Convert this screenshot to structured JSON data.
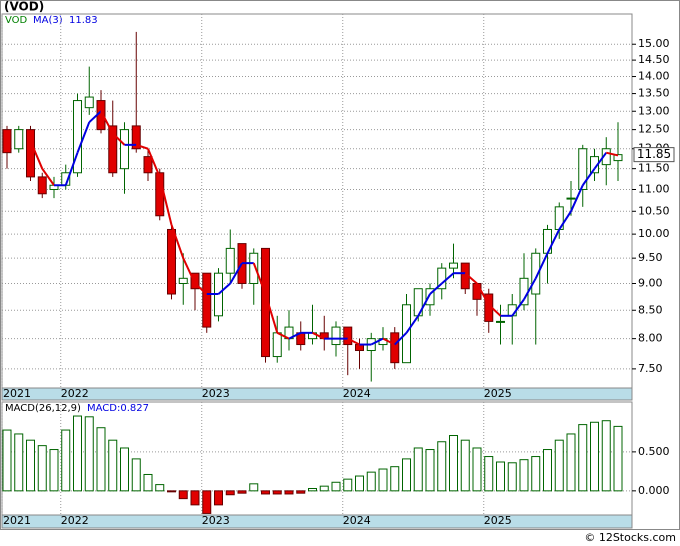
{
  "chart_data": [
    {
      "type": "candlestick",
      "title": "(VOD)",
      "symbol": "VOD",
      "log_scale": true,
      "grid": true,
      "categories": [
        "2021",
        null,
        null,
        null,
        null,
        "2022",
        null,
        null,
        null,
        null,
        null,
        null,
        null,
        null,
        null,
        null,
        null,
        "2023",
        null,
        null,
        null,
        null,
        null,
        null,
        null,
        null,
        null,
        null,
        null,
        "2024",
        null,
        null,
        null,
        null,
        null,
        null,
        null,
        null,
        null,
        null,
        null,
        "2025",
        null,
        null,
        null,
        null,
        null,
        null,
        null,
        null,
        null,
        null,
        null
      ],
      "open": [
        12.5,
        12.0,
        12.5,
        11.3,
        11.0,
        11.1,
        11.4,
        13.1,
        13.3,
        12.6,
        11.5,
        12.6,
        11.8,
        11.4,
        10.1,
        9.0,
        9.2,
        9.2,
        8.4,
        9.2,
        9.8,
        9.0,
        9.7,
        7.7,
        8.0,
        8.1,
        8.0,
        8.1,
        7.9,
        8.2,
        7.9,
        7.8,
        7.9,
        8.1,
        7.6,
        8.4,
        8.6,
        8.9,
        9.3,
        9.4,
        9.0,
        8.8,
        8.3,
        8.4,
        8.6,
        8.8,
        9.6,
        10.1,
        10.8,
        11.0,
        11.4,
        11.6,
        11.7
      ],
      "high": [
        12.6,
        12.6,
        12.6,
        11.4,
        11.3,
        11.6,
        13.5,
        14.3,
        13.6,
        13.3,
        12.7,
        15.4,
        12.0,
        11.5,
        10.2,
        9.6,
        9.2,
        9.2,
        9.3,
        10.1,
        9.8,
        9.7,
        9.7,
        8.4,
        8.5,
        8.3,
        8.6,
        8.4,
        8.3,
        8.2,
        8.0,
        8.1,
        8.2,
        8.2,
        8.8,
        8.9,
        9.0,
        9.4,
        9.8,
        9.4,
        9.0,
        8.9,
        8.6,
        8.8,
        9.6,
        9.7,
        10.2,
        10.7,
        11.2,
        12.1,
        12.0,
        12.3,
        12.7
      ],
      "low": [
        11.5,
        11.9,
        11.2,
        10.8,
        10.8,
        11.0,
        11.3,
        12.9,
        12.4,
        11.3,
        10.9,
        11.9,
        11.2,
        10.3,
        8.7,
        8.6,
        8.5,
        8.1,
        8.3,
        9.0,
        8.9,
        8.6,
        7.6,
        7.6,
        7.8,
        7.8,
        7.9,
        7.8,
        7.7,
        7.4,
        7.5,
        7.3,
        7.8,
        7.5,
        7.6,
        8.3,
        8.4,
        8.7,
        9.1,
        8.8,
        8.4,
        8.1,
        7.9,
        7.9,
        8.5,
        7.9,
        9.0,
        9.9,
        10.4,
        10.6,
        11.2,
        11.1,
        11.2
      ],
      "close": [
        11.9,
        12.5,
        11.3,
        10.9,
        11.1,
        11.4,
        13.3,
        13.4,
        12.5,
        11.4,
        12.5,
        12.0,
        11.4,
        10.4,
        8.8,
        9.1,
        8.9,
        8.2,
        9.2,
        9.7,
        9.0,
        9.6,
        7.7,
        8.1,
        8.2,
        7.9,
        8.1,
        8.0,
        8.2,
        7.9,
        7.8,
        8.0,
        8.0,
        7.6,
        8.6,
        8.9,
        8.9,
        9.3,
        9.4,
        8.9,
        8.7,
        8.3,
        8.3,
        8.6,
        9.1,
        9.6,
        10.1,
        10.6,
        10.8,
        12.0,
        11.8,
        12.0,
        11.85
      ],
      "up_color": "#006400",
      "down_color": "#e00000",
      "last_price": 11.85,
      "ma": {
        "name": "MA(3)",
        "last": 11.83,
        "up_color": "#0000e0",
        "down_color": "#e00000",
        "values": [
          null,
          null,
          12.2,
          11.5,
          11.1,
          11.1,
          11.9,
          12.7,
          13.0,
          12.4,
          12.1,
          12.1,
          12.0,
          11.3,
          10.2,
          9.5,
          9.0,
          8.8,
          8.8,
          9.0,
          9.4,
          9.4,
          8.8,
          8.1,
          8.0,
          8.1,
          8.1,
          8.0,
          8.0,
          8.0,
          7.9,
          7.9,
          8.0,
          7.9,
          8.1,
          8.4,
          8.8,
          9.0,
          9.2,
          9.2,
          9.0,
          8.6,
          8.4,
          8.4,
          8.7,
          9.1,
          9.6,
          10.1,
          10.5,
          11.1,
          11.5,
          11.9,
          11.83
        ]
      },
      "ylim": [
        7.2,
        16.0
      ],
      "yticks": [
        {
          "value": 7.5,
          "label": "7.50"
        },
        {
          "value": 8,
          "label": "8.00"
        },
        {
          "value": 8.5,
          "label": "8.50"
        },
        {
          "value": 9,
          "label": "9.00"
        },
        {
          "value": 9.5,
          "label": "9.50"
        },
        {
          "value": 10,
          "label": "10.00"
        },
        {
          "value": 10.5,
          "label": "10.50"
        },
        {
          "value": 11,
          "label": "11.00"
        },
        {
          "value": 11.5,
          "label": "11.50"
        },
        {
          "value": 12,
          "label": "12.00"
        },
        {
          "value": 12.5,
          "label": "12.50"
        },
        {
          "value": 13,
          "label": "13.00"
        },
        {
          "value": 13.5,
          "label": "13.50"
        },
        {
          "value": 14,
          "label": "14.00"
        },
        {
          "value": 14.5,
          "label": "14.50"
        },
        {
          "value": 15,
          "label": "15.00"
        }
      ]
    },
    {
      "type": "bar",
      "title": "MACD(26,12,9)",
      "legend_label": "MACD:0.827",
      "grid": true,
      "positive_color": "#006400",
      "negative_color": "#e00000",
      "values": [
        0.78,
        0.73,
        0.65,
        0.58,
        0.53,
        0.78,
        0.96,
        0.95,
        0.81,
        0.65,
        0.55,
        0.41,
        0.21,
        0.08,
        -0.01,
        -0.1,
        -0.18,
        -0.29,
        -0.18,
        -0.05,
        -0.03,
        0.09,
        -0.04,
        -0.04,
        -0.04,
        -0.03,
        0.03,
        0.06,
        0.11,
        0.15,
        0.19,
        0.24,
        0.28,
        0.31,
        0.41,
        0.55,
        0.53,
        0.63,
        0.71,
        0.65,
        0.55,
        0.44,
        0.37,
        0.36,
        0.4,
        0.44,
        0.53,
        0.65,
        0.73,
        0.85,
        0.88,
        0.9,
        0.827
      ],
      "ylim": [
        -0.31,
        1.14
      ],
      "yticks": [
        {
          "value": 0,
          "label": "0.000"
        },
        {
          "value": 0.5,
          "label": "0.500"
        }
      ]
    }
  ],
  "credit": "© 12Stocks.com"
}
